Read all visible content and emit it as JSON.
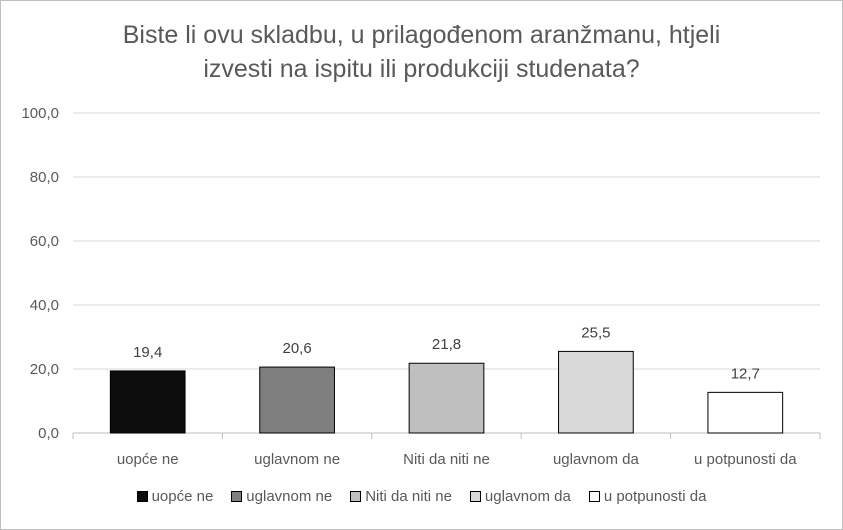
{
  "chart_data": {
    "type": "bar",
    "title_lines": [
      "Biste li ovu skladbu, u prilagođenom aranžmanu, htjeli",
      "izvesti na ispitu ili produkciji studenata?"
    ],
    "categories": [
      "uopće ne",
      "uglavnom ne",
      "Niti da niti ne",
      "uglavnom da",
      "u potpunosti da"
    ],
    "values": [
      19.4,
      20.6,
      21.8,
      25.5,
      12.7
    ],
    "value_labels": [
      "19,4",
      "20,6",
      "21,8",
      "25,5",
      "12,7"
    ],
    "colors": [
      "#0d0d0d",
      "#7f7f7f",
      "#bfbfbf",
      "#d9d9d9",
      "#ffffff"
    ],
    "ylim": [
      0,
      100
    ],
    "yticks": [
      0,
      20,
      40,
      60,
      80,
      100
    ],
    "ytick_labels": [
      "0,0",
      "20,0",
      "40,0",
      "60,0",
      "80,0",
      "100,0"
    ],
    "grid": true,
    "legend_position": "bottom"
  }
}
